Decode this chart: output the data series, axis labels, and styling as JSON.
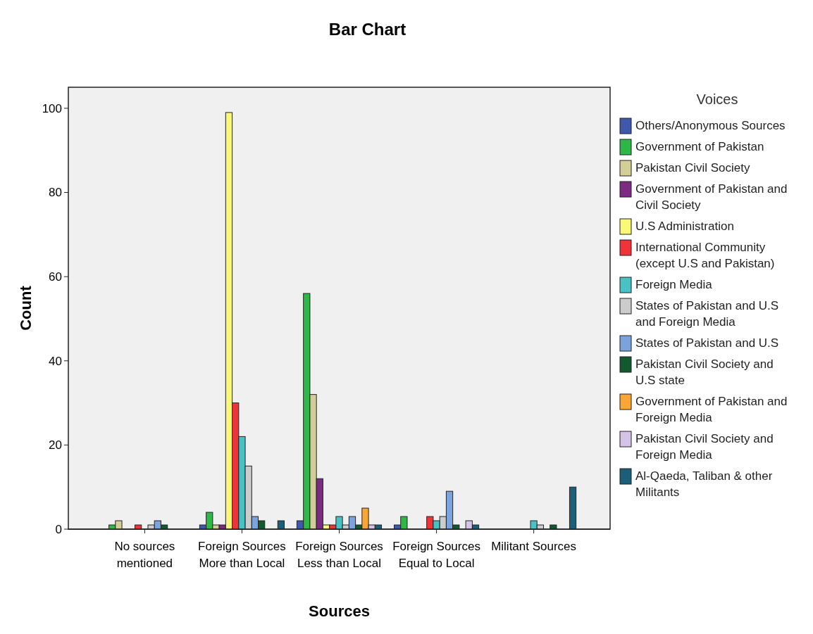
{
  "chart_data": {
    "type": "bar",
    "title": "Bar Chart",
    "xlabel": "Sources",
    "ylabel": "Count",
    "legend_title": "Voices",
    "legend": "right",
    "grid": false,
    "categories": [
      "No sources mentioned",
      "Foreign Sources More than Local",
      "Foreign Sources Less than Local",
      "Foreign Sources Equal to Local",
      "Militant Sources"
    ],
    "ylim": [
      0,
      105
    ],
    "yticks": [
      0,
      20,
      40,
      60,
      80,
      100
    ],
    "series": [
      {
        "name": "Others/Anonymous Sources",
        "color": "#3e58ac",
        "values": [
          0,
          1,
          2,
          1,
          0
        ]
      },
      {
        "name": "Government of Pakistan",
        "color": "#2eb848",
        "values": [
          1,
          4,
          56,
          3,
          0
        ]
      },
      {
        "name": "Pakistan Civil Society",
        "color": "#d3ce97",
        "values": [
          2,
          1,
          32,
          0,
          0
        ]
      },
      {
        "name": "Government of Pakistan and Civil Society",
        "color": "#7c2b83",
        "values": [
          0,
          1,
          12,
          0,
          0
        ]
      },
      {
        "name": "U.S Administration",
        "color": "#fbf873",
        "values": [
          0,
          99,
          1,
          0,
          0
        ]
      },
      {
        "name": "International Community (except U.S and Pakistan)",
        "color": "#ef3338",
        "values": [
          1,
          30,
          1,
          3,
          0
        ]
      },
      {
        "name": "Foreign Media",
        "color": "#48c2c5",
        "values": [
          0,
          22,
          3,
          2,
          2
        ]
      },
      {
        "name": "States of Pakistan and U.S and Foreign Media",
        "color": "#cccccc",
        "values": [
          1,
          15,
          1,
          3,
          1
        ]
      },
      {
        "name": "States of Pakistan and U.S",
        "color": "#7ba4dd",
        "values": [
          2,
          3,
          3,
          9,
          0
        ]
      },
      {
        "name": "Pakistan Civil Society and U.S state",
        "color": "#115a30",
        "values": [
          1,
          2,
          1,
          1,
          1
        ]
      },
      {
        "name": "Government of Pakistan and Foreign Media",
        "color": "#f9a635",
        "values": [
          0,
          0,
          5,
          0,
          0
        ]
      },
      {
        "name": "Pakistan Civil Society and Foreign Media",
        "color": "#d5c3e7",
        "values": [
          0,
          0,
          1,
          2,
          0
        ]
      },
      {
        "name": "Al-Qaeda, Taliban & other Militants",
        "color": "#1b5e78",
        "values": [
          0,
          2,
          1,
          1,
          10
        ]
      }
    ]
  }
}
